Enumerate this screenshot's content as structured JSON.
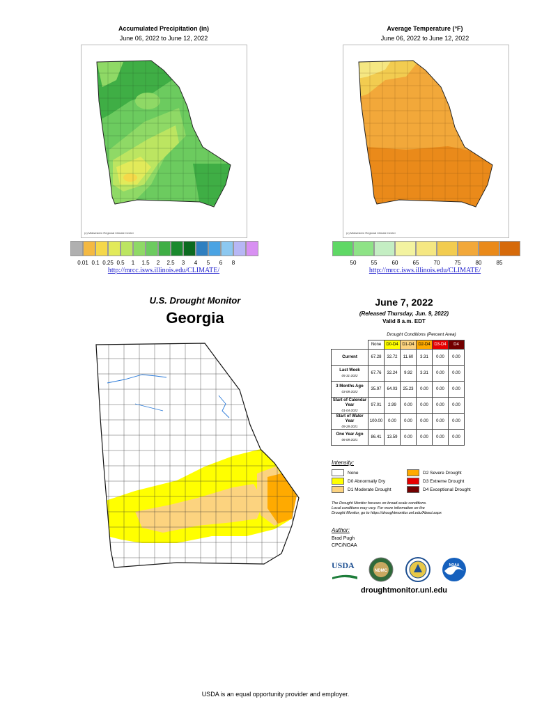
{
  "precip_map": {
    "title": "Accumulated Precipitation (in)",
    "subtitle": "June 06, 2022 to June 12, 2022",
    "credit": "(c) Midwestern Regional Climate Center",
    "legend_labels": [
      "0.01",
      "0.1",
      "0.25",
      "0.5",
      "1",
      "1.5",
      "2",
      "2.5",
      "3",
      "4",
      "5",
      "6",
      "8"
    ],
    "legend_colors": [
      "#b0b0b0",
      "#f4b942",
      "#f5d84a",
      "#e2ea5a",
      "#bce561",
      "#8fd966",
      "#6ccb5f",
      "#3fae45",
      "#1a8a2e",
      "#0c6a20",
      "#2f7fc0",
      "#4aa3e3",
      "#8cc8f0",
      "#b7b7f5",
      "#d890f2"
    ],
    "url": "http://mrcc.isws.illinois.edu/CLIMATE/"
  },
  "temp_map": {
    "title": "Average Temperature (°F)",
    "subtitle": "June 06, 2022 to June 12, 2022",
    "credit": "(c) Midwestern Regional Climate Center",
    "legend_labels": [
      "50",
      "55",
      "60",
      "65",
      "70",
      "75",
      "80",
      "85"
    ],
    "legend_colors": [
      "#5fd865",
      "#8ee386",
      "#c4eec3",
      "#f3f3a0",
      "#f5e782",
      "#f2cc50",
      "#f2a83a",
      "#ea8a1a",
      "#d66a0a"
    ],
    "url": "http://mrcc.isws.illinois.edu/CLIMATE/"
  },
  "drought_monitor": {
    "title": "U.S. Drought Monitor",
    "state": "Georgia",
    "date": "June 7, 2022",
    "released": "(Released Thursday, Jun. 9, 2022)",
    "valid": "Valid 8 a.m. EDT",
    "table_caption": "Drought Conditions (Percent Area)",
    "columns": [
      {
        "label": "None",
        "color": "#ffffff",
        "text": "#000000"
      },
      {
        "label": "D0-D4",
        "color": "#ffff00",
        "text": "#000000"
      },
      {
        "label": "D1-D4",
        "color": "#fcd37f",
        "text": "#000000"
      },
      {
        "label": "D2-D4",
        "color": "#ffaa00",
        "text": "#000000"
      },
      {
        "label": "D3-D4",
        "color": "#e60000",
        "text": "#ffffff"
      },
      {
        "label": "D4",
        "color": "#730000",
        "text": "#ffffff"
      }
    ],
    "rows": [
      {
        "label": "Current",
        "sub": "",
        "values": [
          "67.28",
          "32.72",
          "11.60",
          "3.31",
          "0.00",
          "0.00"
        ]
      },
      {
        "label": "Last Week",
        "sub": "05-31-2022",
        "values": [
          "67.76",
          "32.24",
          "9.92",
          "3.31",
          "0.00",
          "0.00"
        ]
      },
      {
        "label": "3 Months Ago",
        "sub": "03-08-2022",
        "values": [
          "35.97",
          "64.03",
          "25.23",
          "0.00",
          "0.00",
          "0.00"
        ]
      },
      {
        "label": "Start of Calendar Year",
        "sub": "01-04-2022",
        "values": [
          "97.01",
          "2.99",
          "0.00",
          "0.00",
          "0.00",
          "0.00"
        ]
      },
      {
        "label": "Start of Water Year",
        "sub": "09-28-2021",
        "values": [
          "100.00",
          "0.00",
          "0.00",
          "0.00",
          "0.00",
          "0.00"
        ]
      },
      {
        "label": "One Year Ago",
        "sub": "06-08-2021",
        "values": [
          "86.41",
          "13.59",
          "0.00",
          "0.00",
          "0.00",
          "0.00"
        ]
      }
    ],
    "intensity_heading": "Intensity:",
    "intensity": [
      {
        "label": "None",
        "color": "#ffffff"
      },
      {
        "label": "D0 Abnormally Dry",
        "color": "#ffff00"
      },
      {
        "label": "D1 Moderate Drought",
        "color": "#fcd37f"
      },
      {
        "label": "D2 Severe Drought",
        "color": "#ffaa00"
      },
      {
        "label": "D3 Extreme Drought",
        "color": "#e60000"
      },
      {
        "label": "D4 Exceptional Drought",
        "color": "#730000"
      }
    ],
    "note_lines": [
      "The Drought Monitor focuses on broad-scale conditions.",
      "Local conditions may vary. For more information on the",
      "Drought Monitor, go to https://droughtmonitor.unl.edu/About.aspx"
    ],
    "author_heading": "Author:",
    "author_name": "Brad Pugh",
    "author_org": "CPC/NOAA",
    "logos": {
      "usda": "USDA",
      "ndmc": "NDMC",
      "noaa": "NOAA"
    },
    "website": "droughtmonitor.unl.edu"
  },
  "footer": "USDA is an equal opportunity provider and employer."
}
